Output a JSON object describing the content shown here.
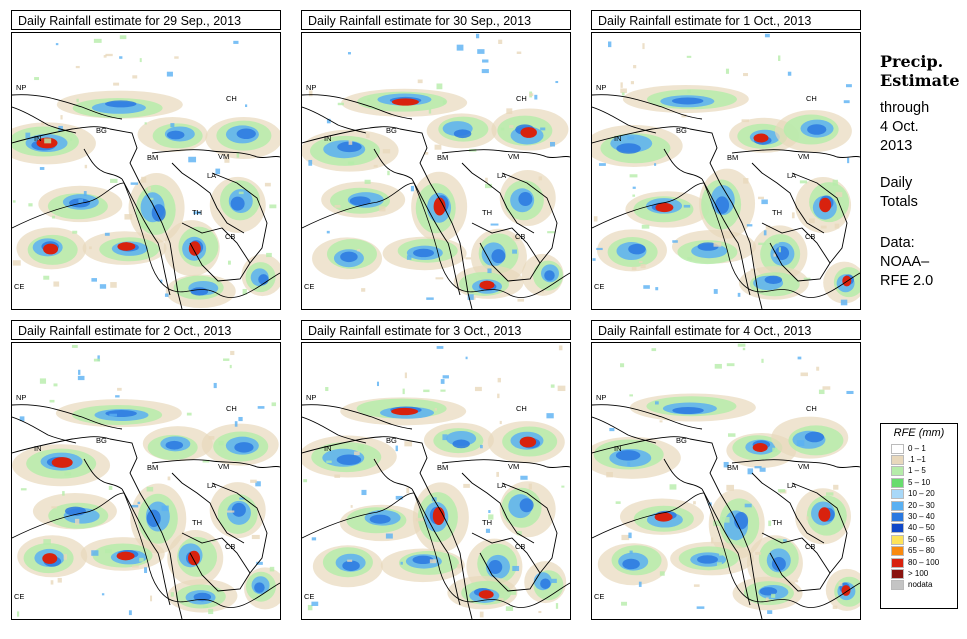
{
  "panels": [
    {
      "title": "Daily Rainfall estimate for  29 Sep., 2013"
    },
    {
      "title": "Daily Rainfall estimate for  30 Sep., 2013"
    },
    {
      "title": "Daily Rainfall estimate for  1 Oct., 2013"
    },
    {
      "title": "Daily Rainfall estimate for  2 Oct., 2013"
    },
    {
      "title": "Daily Rainfall estimate for  3 Oct., 2013"
    },
    {
      "title": "Daily Rainfall estimate for  4 Oct., 2013"
    }
  ],
  "country_labels": {
    "np": "NP",
    "ch": "CH",
    "in": "IN",
    "bg": "BG",
    "bm": "BM",
    "vm": "VM",
    "la": "LA",
    "th": "TH",
    "cb": "CB",
    "ce": "CE"
  },
  "side": {
    "title1": "Precip.",
    "title2": "Estimate",
    "line1": "through",
    "line2": "4 Oct.",
    "line3": "2013",
    "daily1": "Daily",
    "daily2": "Totals",
    "data1": "Data:",
    "data2": "NOAA–",
    "data3": "RFE 2.0"
  },
  "legend": {
    "title": "RFE (mm)",
    "items": [
      {
        "label": "0 – 1",
        "color": "#ffffff"
      },
      {
        "label": ".1 –1",
        "color": "#e8d8bc"
      },
      {
        "label": "1 – 5",
        "color": "#b6ecaa"
      },
      {
        "label": "5 – 10",
        "color": "#68dc6e"
      },
      {
        "label": "10 – 20",
        "color": "#a8d8f8"
      },
      {
        "label": "20 – 30",
        "color": "#5ab0f2"
      },
      {
        "label": "30 – 40",
        "color": "#2a78e0"
      },
      {
        "label": "40 – 50",
        "color": "#1048c8"
      },
      {
        "label": "50 – 65",
        "color": "#fde35a"
      },
      {
        "label": "65 – 80",
        "color": "#f98a10"
      },
      {
        "label": "80 – 100",
        "color": "#d8220e"
      },
      {
        "label": "> 100",
        "color": "#8a1410"
      },
      {
        "label": "nodata",
        "color": "#c4c4c4"
      }
    ]
  },
  "rain_hotspots": [
    [
      "#e8d8bc",
      "#b6ecaa",
      "#5ab0f2",
      "#2a78e0",
      "#d8220e"
    ],
    [
      "#e8d8bc",
      "#b6ecaa",
      "#5ab0f2",
      "#2a78e0",
      "#d8220e"
    ],
    [
      "#e8d8bc",
      "#b6ecaa",
      "#5ab0f2",
      "#2a78e0",
      "#d8220e"
    ],
    [
      "#e8d8bc",
      "#b6ecaa",
      "#5ab0f2",
      "#2a78e0",
      "#d8220e"
    ],
    [
      "#e8d8bc",
      "#b6ecaa",
      "#5ab0f2",
      "#2a78e0",
      "#d8220e"
    ],
    [
      "#e8d8bc",
      "#b6ecaa",
      "#5ab0f2",
      "#2a78e0",
      "#d8220e"
    ]
  ]
}
